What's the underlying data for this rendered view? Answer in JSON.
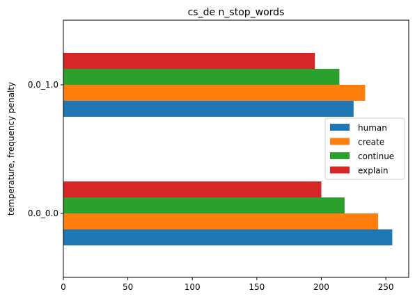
{
  "chart_data": {
    "type": "bar",
    "orientation": "horizontal",
    "title": "cs_de n_stop_words",
    "xlabel": "",
    "ylabel": "temperature, frequency penalty",
    "categories": [
      "0.0_0.0",
      "0.0_1.0"
    ],
    "series": [
      {
        "name": "human",
        "values": [
          255,
          225
        ],
        "color": "#1f77b4"
      },
      {
        "name": "create",
        "values": [
          244,
          234
        ],
        "color": "#ff7f0e"
      },
      {
        "name": "continue",
        "values": [
          218,
          214
        ],
        "color": "#2ca02c"
      },
      {
        "name": "explain",
        "values": [
          200,
          195
        ],
        "color": "#d62728"
      }
    ],
    "xlim": [
      0,
      267.75
    ],
    "xticks": [
      0,
      50,
      100,
      150,
      200,
      250
    ],
    "grid": false,
    "legend": "center-right"
  }
}
